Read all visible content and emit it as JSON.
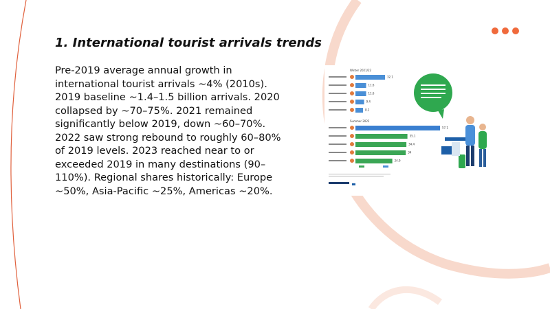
{
  "slide": {
    "title": "1. International tourist arrivals trends",
    "body": "Pre-2019 average annual growth in international tourist arrivals ~4% (2010s). 2019 baseline ~1.4–1.5 billion arrivals. 2020 collapsed by ~70–75%. 2021 remained significantly below 2019, down ~60–70%. 2022 saw strong rebound to roughly 60–80% of 2019 levels. 2023 reached near to or exceeded 2019 in many destinations (90–110%). Regional shares historically: Europe ~50%, Asia-Pacific ~25%, Americas ~20%.",
    "figure": {
      "groups": [
        {
          "title": "Winter 2021/22",
          "values": [
            32.1,
            11.6,
            11.6,
            9.4,
            8.2
          ]
        },
        {
          "title": "Summer 2022",
          "values": [
            57.1,
            35.1,
            34.4,
            34.0,
            24.9
          ]
        }
      ]
    }
  }
}
